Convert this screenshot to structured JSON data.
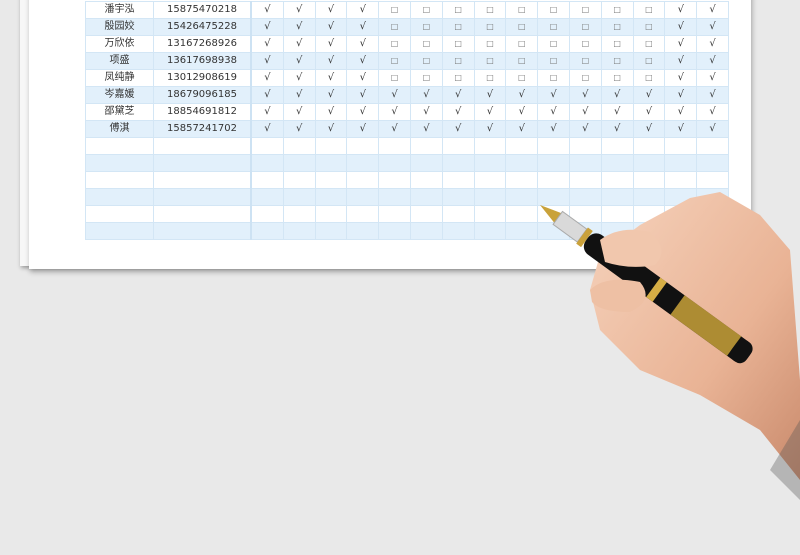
{
  "roster": {
    "rows": [
      {
        "name": "潘宇泓",
        "phone": "15875470218",
        "marks": [
          "√",
          "√",
          "√",
          "√",
          "□",
          "□",
          "□",
          "□",
          "□",
          "□",
          "□",
          "□",
          "□",
          "√",
          "√"
        ]
      },
      {
        "name": "殷园姣",
        "phone": "15426475228",
        "marks": [
          "√",
          "√",
          "√",
          "√",
          "□",
          "□",
          "□",
          "□",
          "□",
          "□",
          "□",
          "□",
          "□",
          "√",
          "√"
        ]
      },
      {
        "name": "万欣依",
        "phone": "13167268926",
        "marks": [
          "√",
          "√",
          "√",
          "√",
          "□",
          "□",
          "□",
          "□",
          "□",
          "□",
          "□",
          "□",
          "□",
          "√",
          "√"
        ]
      },
      {
        "name": "项盛",
        "phone": "13617698938",
        "marks": [
          "√",
          "√",
          "√",
          "√",
          "□",
          "□",
          "□",
          "□",
          "□",
          "□",
          "□",
          "□",
          "□",
          "√",
          "√"
        ]
      },
      {
        "name": "凤纯静",
        "phone": "13012908619",
        "marks": [
          "√",
          "√",
          "√",
          "√",
          "□",
          "□",
          "□",
          "□",
          "□",
          "□",
          "□",
          "□",
          "□",
          "√",
          "√"
        ]
      },
      {
        "name": "岑嘉媛",
        "phone": "18679096185",
        "marks": [
          "√",
          "√",
          "√",
          "√",
          "√",
          "√",
          "√",
          "√",
          "√",
          "√",
          "√",
          "√",
          "√",
          "√",
          "√"
        ]
      },
      {
        "name": "邵黛芝",
        "phone": "18854691812",
        "marks": [
          "√",
          "√",
          "√",
          "√",
          "√",
          "√",
          "√",
          "√",
          "√",
          "√",
          "√",
          "√",
          "√",
          "√",
          "√"
        ]
      },
      {
        "name": "傅淇",
        "phone": "15857241702",
        "marks": [
          "√",
          "√",
          "√",
          "√",
          "√",
          "√",
          "√",
          "√",
          "√",
          "√",
          "√",
          "√",
          "√",
          "√",
          "√"
        ]
      }
    ],
    "empty_rows": 6,
    "columns_count": 15
  },
  "colors": {
    "row_alt": "#e2f0fb",
    "grid": "#d3e6f5",
    "background": "#e9e9e9"
  }
}
